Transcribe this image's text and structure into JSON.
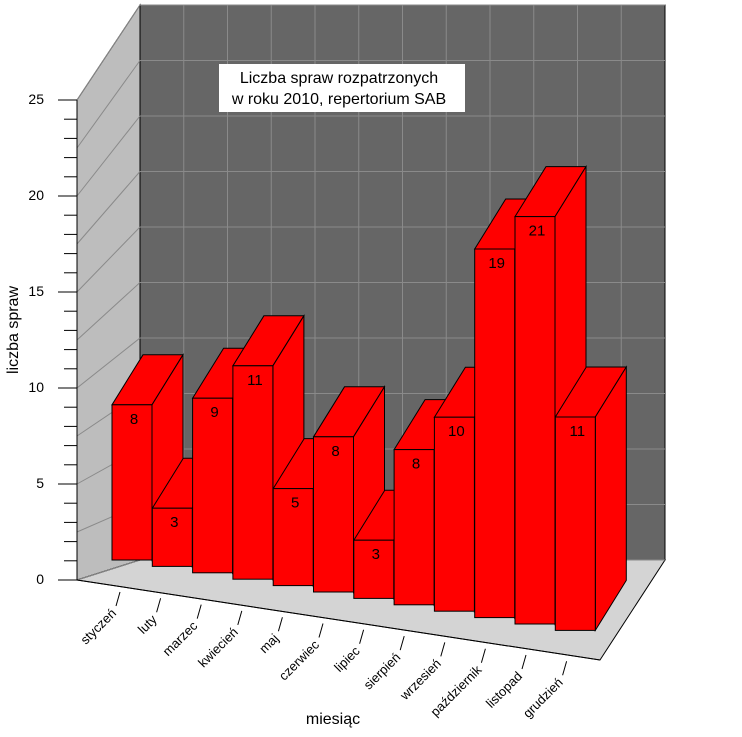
{
  "chart_data": {
    "type": "bar",
    "title_lines": [
      "Liczba spraw rozpatrzonych",
      "w roku 2010, repertorium SAB"
    ],
    "xlabel": "miesiąc",
    "ylabel": "liczba spraw",
    "categories": [
      "styczeń",
      "luty",
      "marzec",
      "kwiecień",
      "maj",
      "czerwiec",
      "lipiec",
      "sierpień",
      "wrzesień",
      "październik",
      "listopad",
      "grudzień"
    ],
    "values": [
      8,
      3,
      9,
      11,
      5,
      8,
      3,
      8,
      10,
      19,
      21,
      11
    ],
    "ylim": [
      0,
      25
    ],
    "yticks": [
      "0",
      "5",
      "10",
      "15",
      "20",
      "25"
    ],
    "grid": true,
    "style": "3d-bar",
    "colors": {
      "bar_front": "#ff0000",
      "bar_top": "#ff0000",
      "bar_side": "#ff0000",
      "back_wall": "#666666",
      "side_wall": "#bdbdbd",
      "floor": "#d4d4d4",
      "grid_line": "#8a8a8a"
    }
  }
}
